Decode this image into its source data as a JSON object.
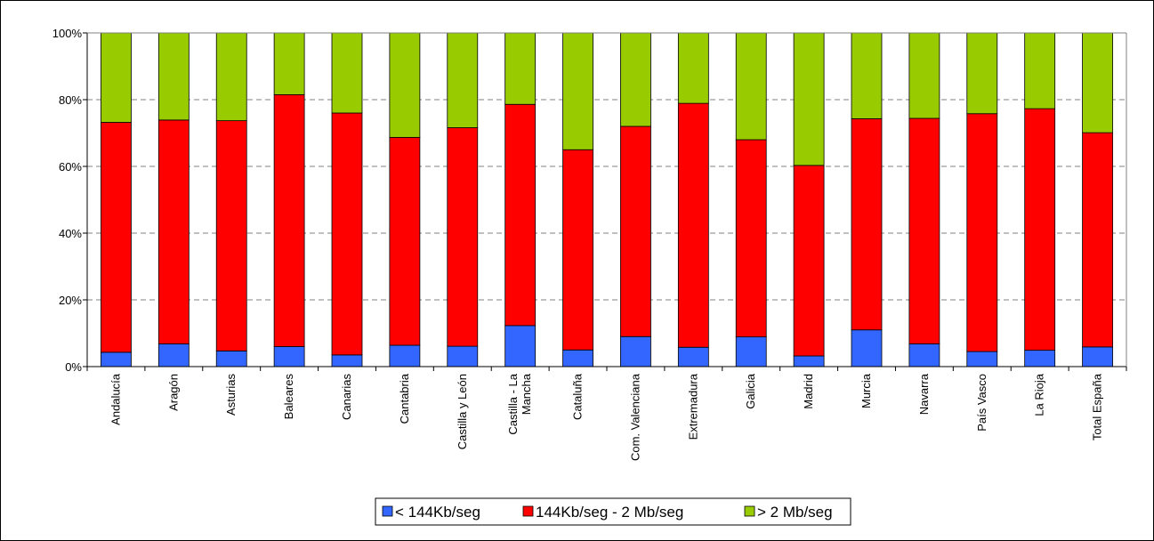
{
  "chart_data": {
    "type": "bar",
    "stacked": true,
    "percent": true,
    "title": "",
    "xlabel": "",
    "ylabel": "",
    "ylim": [
      0,
      100
    ],
    "yticks": [
      "0%",
      "20%",
      "40%",
      "60%",
      "80%",
      "100%"
    ],
    "grid": "horizontal-dashed",
    "legend": {
      "position": "bottom"
    },
    "categories": [
      "Andalucía",
      "Aragón",
      "Asturias",
      "Baleares",
      "Canarias",
      "Cantabria",
      "Castilla y León",
      "Castilla - La Mancha",
      "Cataluña",
      "Com. Valenciana",
      "Extremadura",
      "Galicia",
      "Madrid",
      "Murcia",
      "Navarra",
      "País Vasco",
      "La Rioja",
      "Total España"
    ],
    "category_lines": [
      [
        "Andalucía"
      ],
      [
        "Aragón"
      ],
      [
        "Asturias"
      ],
      [
        "Baleares"
      ],
      [
        "Canarias"
      ],
      [
        "Cantabria"
      ],
      [
        "Castilla y León"
      ],
      [
        "Castilla - La",
        "Mancha"
      ],
      [
        "Cataluña"
      ],
      [
        "Com. Valenciana"
      ],
      [
        "Extremadura"
      ],
      [
        "Galicia"
      ],
      [
        "Madrid"
      ],
      [
        "Murcia"
      ],
      [
        "Navarra"
      ],
      [
        "País Vasco"
      ],
      [
        "La Rioja"
      ],
      [
        "Total España"
      ]
    ],
    "series": [
      {
        "name": "< 144Kb/seg",
        "color": "#3366FF",
        "values": [
          4.3,
          6.8,
          4.7,
          6.0,
          3.5,
          6.4,
          6.1,
          12.3,
          5.0,
          9.0,
          5.8,
          8.9,
          3.2,
          11.0,
          6.8,
          4.5,
          4.9,
          5.9
        ]
      },
      {
        "name": "144Kb/seg - 2 Mb/seg",
        "color": "#FF0000",
        "values": [
          68.9,
          67.1,
          69.0,
          75.5,
          72.5,
          62.3,
          65.5,
          66.3,
          60.0,
          63.0,
          73.1,
          59.1,
          57.1,
          63.3,
          67.6,
          71.3,
          72.4,
          64.2
        ]
      },
      {
        "name": "> 2 Mb/seg",
        "color": "#99CC00",
        "values": [
          26.8,
          26.1,
          26.3,
          18.5,
          24.0,
          31.3,
          28.4,
          21.4,
          35.0,
          28.0,
          21.1,
          32.0,
          39.7,
          25.7,
          25.6,
          24.2,
          22.7,
          29.9
        ]
      }
    ]
  }
}
